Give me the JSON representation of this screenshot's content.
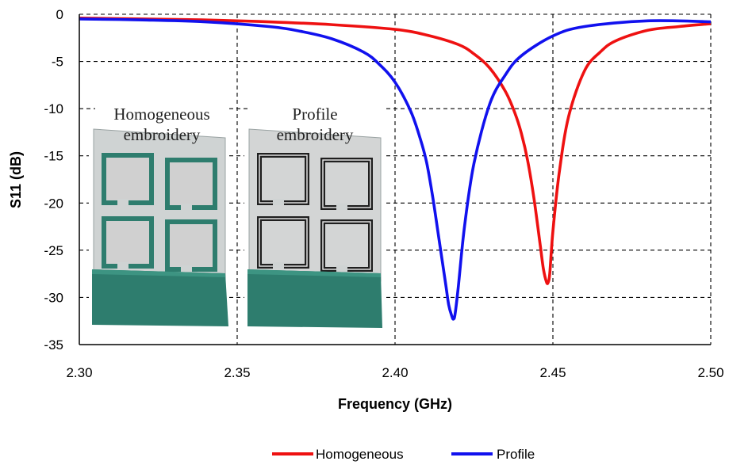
{
  "chart_data": {
    "type": "line",
    "title": "",
    "xlabel": "Frequency (GHz)",
    "ylabel": "S11 (dB)",
    "xlim": [
      2.3,
      2.5
    ],
    "ylim": [
      -35,
      0
    ],
    "x_ticks": [
      "2.30",
      "2.35",
      "2.40",
      "2.45",
      "2.50"
    ],
    "y_ticks": [
      "0",
      "-5",
      "-10",
      "-15",
      "-20",
      "-25",
      "-30",
      "-35"
    ],
    "grid": "dashed",
    "legend_position": "bottom",
    "series": [
      {
        "name": "Homogeneous",
        "color": "#ee1111",
        "x": [
          2.3,
          2.32,
          2.34,
          2.36,
          2.38,
          2.4,
          2.41,
          2.42,
          2.425,
          2.43,
          2.435,
          2.438,
          2.44,
          2.442,
          2.444,
          2.446,
          2.447,
          2.448,
          2.4485,
          2.449,
          2.45,
          2.452,
          2.455,
          2.46,
          2.465,
          2.47,
          2.48,
          2.49,
          2.5
        ],
        "y": [
          -0.4,
          -0.5,
          -0.6,
          -0.8,
          -1.1,
          -1.6,
          -2.2,
          -3.2,
          -4.2,
          -5.7,
          -8.2,
          -10.5,
          -12.6,
          -15.5,
          -19.5,
          -24.5,
          -27.0,
          -28.4,
          -28.4,
          -27.5,
          -23.0,
          -16.8,
          -10.8,
          -6.0,
          -4.0,
          -2.8,
          -1.7,
          -1.3,
          -1.0
        ]
      },
      {
        "name": "Profile",
        "color": "#1111ee",
        "x": [
          2.3,
          2.32,
          2.34,
          2.36,
          2.37,
          2.38,
          2.39,
          2.395,
          2.4,
          2.405,
          2.408,
          2.41,
          2.412,
          2.414,
          2.416,
          2.417,
          2.418,
          2.4185,
          2.419,
          2.42,
          2.422,
          2.425,
          2.43,
          2.435,
          2.44,
          2.45,
          2.46,
          2.48,
          2.5
        ],
        "y": [
          -0.5,
          -0.6,
          -0.8,
          -1.3,
          -1.8,
          -2.6,
          -4.0,
          -5.3,
          -7.2,
          -10.3,
          -13.2,
          -15.7,
          -19.5,
          -24.0,
          -28.5,
          -30.8,
          -32.0,
          -32.3,
          -31.8,
          -29.0,
          -22.5,
          -15.8,
          -9.5,
          -6.4,
          -4.4,
          -2.3,
          -1.3,
          -0.7,
          -0.8
        ]
      }
    ]
  },
  "inset": {
    "left_caption_line1": "Homogeneous",
    "left_caption_line2": "embroidery",
    "right_caption_line1": "Profile",
    "right_caption_line2": "embroidery",
    "substrate_color": "#2e7d6e",
    "patch_fill": "#d0d0d0"
  }
}
